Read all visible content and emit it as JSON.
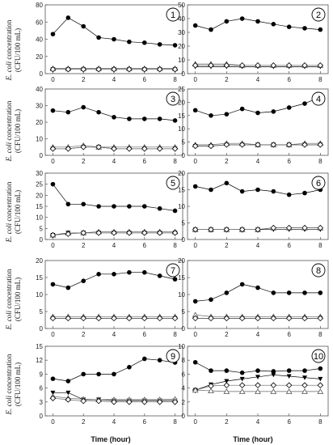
{
  "figure": {
    "ylabel_prefix": "E. coli",
    "ylabel_rest": " concentration",
    "ylabel_unit": "(CFU/100 mL)",
    "xlabel": "Time (hour)"
  },
  "chart_data": [
    {
      "type": "line",
      "panel": "1",
      "xlim": [
        -0.5,
        8.5
      ],
      "ylim": [
        0,
        80
      ],
      "yticks": [
        0,
        20,
        40,
        60,
        80
      ],
      "xticks": [
        0,
        2,
        4,
        6,
        8
      ],
      "series": [
        {
          "marker": "filled-circle",
          "x": [
            0,
            1,
            2,
            3,
            4,
            5,
            6,
            7,
            8
          ],
          "y": [
            46,
            65,
            55,
            42,
            40,
            37,
            36,
            34,
            33
          ]
        },
        {
          "marker": "filled-triangle-down",
          "x": [
            0,
            1,
            2,
            3,
            4,
            5,
            6,
            7,
            8
          ],
          "y": [
            5,
            5,
            5,
            5,
            5,
            5,
            5,
            5,
            5
          ]
        },
        {
          "marker": "open-triangle",
          "x": [
            0,
            1,
            2,
            3,
            4,
            5,
            6,
            7,
            8
          ],
          "y": [
            6,
            6,
            6,
            6,
            6,
            6,
            6,
            6,
            6
          ]
        },
        {
          "marker": "open-diamond",
          "x": [
            0,
            1,
            2,
            3,
            4,
            5,
            6,
            7,
            8
          ],
          "y": [
            5,
            5,
            5,
            5,
            5,
            5,
            5,
            5,
            5
          ]
        }
      ]
    },
    {
      "type": "line",
      "panel": "2",
      "xlim": [
        -0.5,
        8.5
      ],
      "ylim": [
        0,
        50
      ],
      "yticks": [
        0,
        10,
        20,
        30,
        40,
        50
      ],
      "xticks": [
        0,
        2,
        4,
        6,
        8
      ],
      "series": [
        {
          "marker": "filled-circle",
          "x": [
            0,
            1,
            2,
            3,
            4,
            5,
            6,
            7,
            8
          ],
          "y": [
            35,
            32,
            38,
            40,
            38,
            36,
            34,
            33,
            32
          ]
        },
        {
          "marker": "filled-triangle-down",
          "x": [
            0,
            1,
            2,
            3,
            4,
            5,
            6,
            7,
            8
          ],
          "y": [
            5,
            5,
            5,
            5,
            5,
            5,
            5,
            5,
            5
          ]
        },
        {
          "marker": "open-triangle",
          "x": [
            0,
            1,
            2,
            3,
            4,
            5,
            6,
            7,
            8
          ],
          "y": [
            7,
            7,
            7,
            6,
            6,
            6,
            6,
            6,
            6
          ]
        },
        {
          "marker": "open-diamond",
          "x": [
            0,
            1,
            2,
            3,
            4,
            5,
            6,
            7,
            8
          ],
          "y": [
            6,
            6,
            6,
            6,
            6,
            6,
            6,
            6,
            6
          ]
        }
      ]
    },
    {
      "type": "line",
      "panel": "3",
      "xlim": [
        -0.5,
        8.5
      ],
      "ylim": [
        0,
        40
      ],
      "yticks": [
        0,
        10,
        20,
        30,
        40
      ],
      "xticks": [
        0,
        2,
        4,
        6,
        8
      ],
      "series": [
        {
          "marker": "filled-circle",
          "x": [
            0,
            1,
            2,
            3,
            4,
            5,
            6,
            7,
            8
          ],
          "y": [
            27,
            26,
            29,
            26,
            23,
            22,
            22,
            22,
            21
          ]
        },
        {
          "marker": "filled-triangle-down",
          "x": [
            0,
            1,
            2,
            3,
            4,
            5,
            6,
            7,
            8
          ],
          "y": [
            4,
            4,
            5,
            5,
            4,
            4,
            4,
            4,
            4
          ]
        },
        {
          "marker": "open-triangle",
          "x": [
            0,
            1,
            2,
            3,
            4,
            5,
            6,
            7,
            8
          ],
          "y": [
            5,
            5,
            6,
            5,
            5,
            5,
            5,
            5,
            5
          ]
        },
        {
          "marker": "open-diamond",
          "x": [
            0,
            1,
            2,
            3,
            4,
            5,
            6,
            7,
            8
          ],
          "y": [
            4,
            4,
            5,
            5,
            4,
            4,
            4,
            4,
            4
          ]
        }
      ]
    },
    {
      "type": "line",
      "panel": "4",
      "xlim": [
        -0.5,
        8.5
      ],
      "ylim": [
        0,
        25
      ],
      "yticks": [
        0,
        5,
        10,
        15,
        20,
        25
      ],
      "xticks": [
        0,
        2,
        4,
        6,
        8
      ],
      "series": [
        {
          "marker": "filled-circle",
          "x": [
            0,
            1,
            2,
            3,
            4,
            5,
            6,
            7,
            8
          ],
          "y": [
            17,
            15,
            15.5,
            17.5,
            16,
            16.5,
            18,
            19.5,
            22
          ]
        },
        {
          "marker": "filled-triangle-down",
          "x": [
            0,
            1,
            2,
            3,
            4,
            5,
            6,
            7,
            8
          ],
          "y": [
            3.5,
            3.5,
            4,
            4,
            4,
            4,
            4,
            4,
            4
          ]
        },
        {
          "marker": "open-triangle",
          "x": [
            0,
            1,
            2,
            3,
            4,
            5,
            6,
            7,
            8
          ],
          "y": [
            4,
            4,
            4.5,
            4.5,
            4,
            4,
            4,
            4.5,
            4.5
          ]
        },
        {
          "marker": "open-diamond",
          "x": [
            0,
            1,
            2,
            3,
            4,
            5,
            6,
            7,
            8
          ],
          "y": [
            3.5,
            3.5,
            4,
            4,
            4,
            4,
            4,
            4,
            4
          ]
        }
      ]
    },
    {
      "type": "line",
      "panel": "5",
      "xlim": [
        -0.5,
        8.5
      ],
      "ylim": [
        0,
        30
      ],
      "yticks": [
        0,
        5,
        10,
        15,
        20,
        25,
        30
      ],
      "xticks": [
        0,
        2,
        4,
        6,
        8
      ],
      "series": [
        {
          "marker": "filled-circle",
          "x": [
            0,
            1,
            2,
            3,
            4,
            5,
            6,
            7,
            8
          ],
          "y": [
            25,
            16,
            16,
            15,
            15,
            15,
            15,
            14,
            13
          ]
        },
        {
          "marker": "filled-triangle-down",
          "x": [
            0,
            1,
            2,
            3,
            4,
            5,
            6,
            7,
            8
          ],
          "y": [
            2,
            3,
            3,
            3,
            3,
            3,
            3,
            3,
            3
          ]
        },
        {
          "marker": "open-triangle",
          "x": [
            0,
            1,
            2,
            3,
            4,
            5,
            6,
            7,
            8
          ],
          "y": [
            2,
            3,
            3,
            3.5,
            3.5,
            3.5,
            3.5,
            3.5,
            3.5
          ]
        },
        {
          "marker": "open-diamond",
          "x": [
            0,
            1,
            2,
            3,
            4,
            5,
            6,
            7,
            8
          ],
          "y": [
            2,
            2.5,
            3,
            3,
            3,
            3,
            3,
            3,
            3
          ]
        }
      ]
    },
    {
      "type": "line",
      "panel": "6",
      "xlim": [
        -0.5,
        8.5
      ],
      "ylim": [
        0,
        20
      ],
      "yticks": [
        0,
        5,
        10,
        15,
        20
      ],
      "xticks": [
        0,
        2,
        4,
        6,
        8
      ],
      "series": [
        {
          "marker": "filled-circle",
          "x": [
            0,
            1,
            2,
            3,
            4,
            5,
            6,
            7,
            8
          ],
          "y": [
            16,
            15,
            17,
            14.5,
            15,
            14.5,
            13.5,
            14,
            15
          ]
        },
        {
          "marker": "filled-triangle-down",
          "x": [
            0,
            1,
            2,
            3,
            4,
            5,
            6,
            7,
            8
          ],
          "y": [
            3,
            3,
            3,
            3,
            3,
            3,
            3,
            3,
            3
          ]
        },
        {
          "marker": "open-triangle",
          "x": [
            0,
            1,
            2,
            3,
            4,
            5,
            6,
            7,
            8
          ],
          "y": [
            3,
            3,
            3,
            3,
            3,
            3.5,
            3.5,
            3.5,
            3.5
          ]
        },
        {
          "marker": "open-diamond",
          "x": [
            0,
            1,
            2,
            3,
            4,
            5,
            6,
            7,
            8
          ],
          "y": [
            3,
            3,
            3,
            3,
            3,
            3.5,
            3.5,
            3.5,
            3.5
          ]
        }
      ]
    },
    {
      "type": "line",
      "panel": "7",
      "xlim": [
        -0.5,
        8.5
      ],
      "ylim": [
        0,
        20
      ],
      "yticks": [
        0,
        5,
        10,
        15,
        20
      ],
      "xticks": [
        0,
        2,
        4,
        6,
        8
      ],
      "series": [
        {
          "marker": "filled-circle",
          "x": [
            0,
            1,
            2,
            3,
            4,
            5,
            6,
            7,
            8
          ],
          "y": [
            13,
            12,
            14,
            16,
            16,
            16.5,
            16.5,
            15.5,
            14.5
          ]
        },
        {
          "marker": "filled-triangle-down",
          "x": [
            0,
            1,
            2,
            3,
            4,
            5,
            6,
            7,
            8
          ],
          "y": [
            3,
            3,
            3,
            3,
            3,
            3,
            3,
            3,
            3
          ]
        },
        {
          "marker": "open-triangle",
          "x": [
            0,
            1,
            2,
            3,
            4,
            5,
            6,
            7,
            8
          ],
          "y": [
            3.5,
            3.5,
            3.5,
            3.5,
            3.5,
            3.5,
            3.5,
            3.5,
            3.5
          ]
        },
        {
          "marker": "open-diamond",
          "x": [
            0,
            1,
            2,
            3,
            4,
            5,
            6,
            7,
            8
          ],
          "y": [
            3,
            3,
            3,
            3,
            3,
            3,
            3,
            3,
            3
          ]
        }
      ]
    },
    {
      "type": "line",
      "panel": "8",
      "xlim": [
        -0.5,
        8.5
      ],
      "ylim": [
        0,
        20
      ],
      "yticks": [
        0,
        5,
        10,
        15,
        20
      ],
      "xticks": [
        0,
        2,
        4,
        6,
        8
      ],
      "series": [
        {
          "marker": "filled-circle",
          "x": [
            0,
            1,
            2,
            3,
            4,
            5,
            6,
            7,
            8
          ],
          "y": [
            8,
            8.5,
            10.5,
            13,
            12,
            10.5,
            10.5,
            10.5,
            10.5
          ]
        },
        {
          "marker": "filled-triangle-down",
          "x": [
            0,
            1,
            2,
            3,
            4,
            5,
            6,
            7,
            8
          ],
          "y": [
            3,
            3,
            3,
            3,
            3,
            3,
            3,
            3,
            3
          ]
        },
        {
          "marker": "open-triangle",
          "x": [
            0,
            1,
            2,
            3,
            4,
            5,
            6,
            7,
            8
          ],
          "y": [
            4,
            3.5,
            3.5,
            3.5,
            3.5,
            3.5,
            3.5,
            3.5,
            3.5
          ]
        },
        {
          "marker": "open-diamond",
          "x": [
            0,
            1,
            2,
            3,
            4,
            5,
            6,
            7,
            8
          ],
          "y": [
            3,
            3,
            3,
            3,
            3,
            3,
            3,
            3,
            3
          ]
        }
      ]
    },
    {
      "type": "line",
      "panel": "9",
      "xlim": [
        -0.5,
        8.5
      ],
      "ylim": [
        0,
        15
      ],
      "yticks": [
        0,
        3,
        6,
        9,
        12,
        15
      ],
      "xticks": [
        0,
        2,
        4,
        6,
        8
      ],
      "series": [
        {
          "marker": "filled-circle",
          "x": [
            0,
            1,
            2,
            3,
            4,
            5,
            6,
            7,
            8
          ],
          "y": [
            8,
            7.5,
            9,
            9,
            9,
            10.5,
            12.3,
            12,
            11.5
          ]
        },
        {
          "marker": "filled-triangle-down",
          "x": [
            0,
            1,
            2,
            3,
            4,
            5,
            6,
            7,
            8
          ],
          "y": [
            5,
            5,
            3.5,
            3.5,
            3.3,
            3.3,
            3.3,
            3.3,
            3.3
          ]
        },
        {
          "marker": "open-triangle",
          "x": [
            0,
            1,
            2,
            3,
            4,
            5,
            6,
            7,
            8
          ],
          "y": [
            4.2,
            3.8,
            3.6,
            3.5,
            3.5,
            3.5,
            3.5,
            3.5,
            3.6
          ]
        },
        {
          "marker": "open-diamond",
          "x": [
            0,
            1,
            2,
            3,
            4,
            5,
            6,
            7,
            8
          ],
          "y": [
            3.8,
            3.5,
            3.2,
            3.2,
            3,
            3,
            3,
            3,
            3
          ]
        }
      ]
    },
    {
      "type": "line",
      "panel": "10",
      "xlim": [
        -0.5,
        8.5
      ],
      "ylim": [
        0,
        10
      ],
      "yticks": [
        0,
        2,
        4,
        6,
        8,
        10
      ],
      "xticks": [
        0,
        2,
        4,
        6,
        8
      ],
      "series": [
        {
          "marker": "filled-circle",
          "x": [
            0,
            1,
            2,
            3,
            4,
            5,
            6,
            7,
            8
          ],
          "y": [
            7.7,
            6.5,
            6.5,
            6.2,
            6.5,
            6.4,
            6.5,
            6.5,
            6.8
          ]
        },
        {
          "marker": "filled-triangle-down",
          "x": [
            0,
            1,
            2,
            3,
            4,
            5,
            6,
            7,
            8
          ],
          "y": [
            3.7,
            4.5,
            5,
            5.3,
            5.6,
            5.9,
            5.7,
            5.5,
            5.3
          ]
        },
        {
          "marker": "open-diamond",
          "x": [
            0,
            1,
            2,
            3,
            4,
            5,
            6,
            7,
            8
          ],
          "y": [
            3.7,
            4.3,
            4.4,
            4.4,
            4.4,
            4.4,
            4.4,
            4.4,
            4.4
          ]
        },
        {
          "marker": "open-triangle",
          "x": [
            0,
            1,
            2,
            3,
            4,
            5,
            6,
            7,
            8
          ],
          "y": [
            3.7,
            3.6,
            3.5,
            3.5,
            3.5,
            3.5,
            3.5,
            3.5,
            3.5
          ]
        }
      ]
    }
  ]
}
